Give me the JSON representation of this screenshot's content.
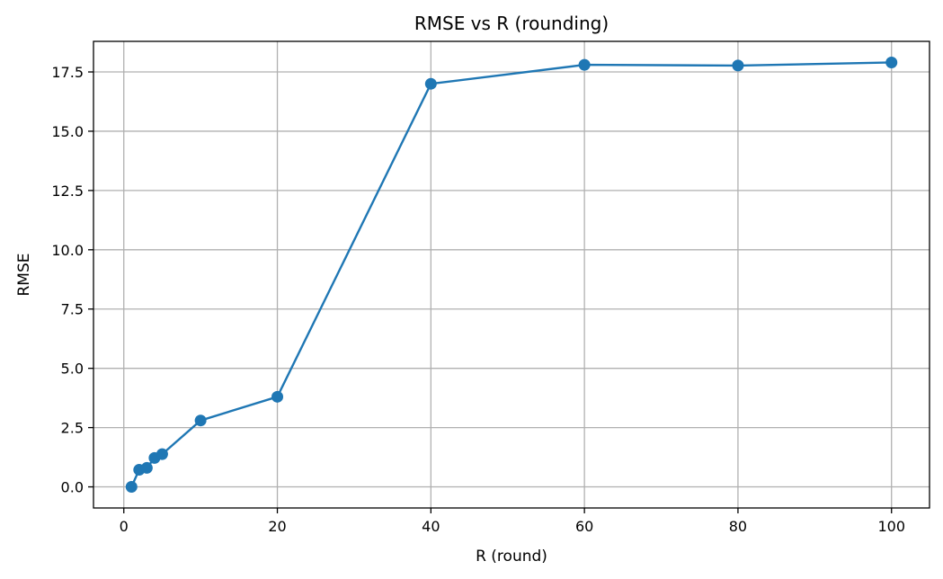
{
  "chart_data": {
    "type": "line",
    "title": "RMSE vs R (rounding)",
    "xlabel": "R (round)",
    "ylabel": "RMSE",
    "xlim": [
      -3.95,
      104.95
    ],
    "ylim": [
      -0.89,
      18.79
    ],
    "xticks": [
      0,
      20,
      40,
      60,
      80,
      100
    ],
    "xtick_labels": [
      "0",
      "20",
      "40",
      "60",
      "80",
      "100"
    ],
    "yticks": [
      0,
      2.5,
      5,
      7.5,
      10,
      12.5,
      15,
      17.5
    ],
    "ytick_labels": [
      "0.0",
      "2.5",
      "5.0",
      "7.5",
      "10.0",
      "12.5",
      "15.0",
      "17.5"
    ],
    "grid": true,
    "marker": "circle",
    "color": "#1f77b4",
    "series": [
      {
        "x": [
          1,
          2,
          3,
          4,
          5,
          10,
          20,
          40,
          60,
          80,
          100
        ],
        "y": [
          0.0,
          0.72,
          0.8,
          1.22,
          1.38,
          2.8,
          3.8,
          17.0,
          17.8,
          17.77,
          17.9
        ]
      }
    ]
  }
}
